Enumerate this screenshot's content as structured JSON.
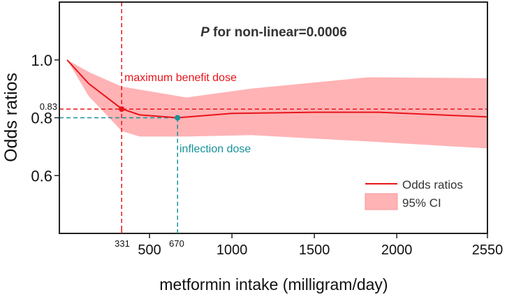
{
  "chart_data": {
    "type": "line",
    "title_prefix": "P",
    "title_rest": " for non-linear=0.0006",
    "xlabel": "metformin intake (milligram/day)",
    "ylabel": "Odds ratios",
    "xlim": [
      -47,
      2550
    ],
    "ylim": [
      0.4,
      1.2
    ],
    "x_ticks": [
      500,
      1000,
      1500,
      2000,
      2550
    ],
    "x_tick_labels": [
      "500",
      "1000",
      "1500",
      "2000",
      "2550"
    ],
    "y_ticks": [
      0.6,
      0.8,
      1.0
    ],
    "y_tick_labels": [
      "0.6",
      "0.8",
      "1.0"
    ],
    "grid": false,
    "legend_position": "bottom-right",
    "series": [
      {
        "name": "Odds ratios",
        "x": [
          0,
          131,
          331,
          440,
          670,
          1000,
          1500,
          1894,
          2550
        ],
        "y": [
          1.0,
          0.918,
          0.831,
          0.81,
          0.8,
          0.815,
          0.819,
          0.819,
          0.803
        ]
      }
    ],
    "ci": {
      "name": "95% CI",
      "x": [
        0,
        136,
        331,
        724,
        1119,
        1826,
        2550
      ],
      "upper": [
        1.0,
        0.957,
        0.908,
        0.87,
        0.901,
        0.94,
        0.937
      ],
      "x_lower": [
        0,
        131,
        331,
        440,
        724,
        1119,
        1826,
        2550
      ],
      "lower": [
        1.0,
        0.875,
        0.754,
        0.735,
        0.735,
        0.74,
        0.718,
        0.694
      ]
    },
    "annotations": {
      "max_benefit": {
        "label": "maximum benefit dose",
        "x": 331,
        "y": 0.83,
        "x_label": "331",
        "y_label": "0.83"
      },
      "inflection": {
        "label": "inflection dose",
        "x": 670,
        "y": 0.8,
        "x_label": "670"
      }
    }
  },
  "colors": {
    "line": "#e8141b",
    "band": "#ffb3b5",
    "teal": "#17929a",
    "axis": "#222222"
  }
}
